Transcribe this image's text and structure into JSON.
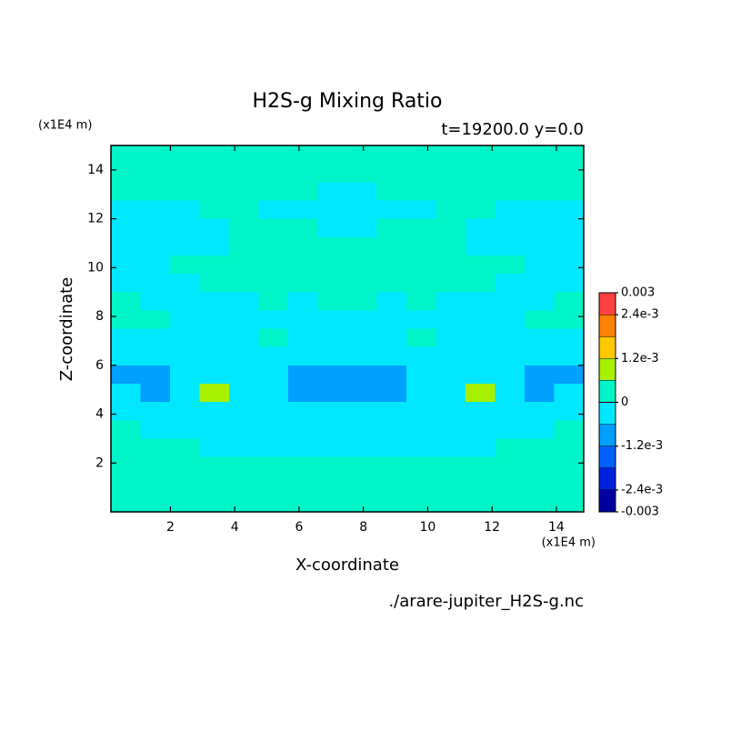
{
  "chart_data": {
    "type": "contour",
    "title": "H2S-g Mixing Ratio",
    "subtitle": "t=19200.0 y=0.0",
    "xlabel": "X-coordinate",
    "ylabel": "Z-coordinate",
    "x_unit": "(x1E4 m)",
    "y_unit": "(x1E4 m)",
    "footer": "./arare-jupiter_H2S-g.nc",
    "xlim": [
      0.15,
      14.85
    ],
    "ylim": [
      0,
      15
    ],
    "xticks": [
      2,
      4,
      6,
      8,
      10,
      12,
      14
    ],
    "yticks": [
      2,
      4,
      6,
      8,
      10,
      12,
      14
    ],
    "levels": [
      -0.003,
      -0.0024,
      -0.0018,
      -0.0012,
      -0.0006,
      0,
      0.0006,
      0.0012,
      0.0018,
      0.0024,
      0.003
    ],
    "colors": [
      "#0000a0",
      "#0020e0",
      "#0060ff",
      "#00a0ff",
      "#00e8ff",
      "#00f5c8",
      "#a6f000",
      "#ffc800",
      "#ff8200",
      "#ff4040"
    ],
    "colorbar_ticks": [
      0.003,
      {
        "value": 0.0024,
        "label": "2.4e-3"
      },
      {
        "value": 0.0012,
        "label": "1.2e-3"
      },
      0,
      {
        "value": -0.0012,
        "label": "-1.2e-3"
      },
      {
        "value": -0.0024,
        "label": "-2.4e-3"
      },
      -0.003
    ],
    "z": [
      [
        0.0003,
        0.0003,
        0.0003,
        0.0003,
        0.0003,
        0.0003,
        0.0003,
        0.0003,
        0.0003,
        0.0003,
        0.0003,
        0.0003,
        0.0003,
        0.0003,
        0.0003,
        0.0003
      ],
      [
        0.0003,
        0.0003,
        0.0003,
        0.0003,
        0.0003,
        0.0003,
        0.0003,
        0.0003,
        0.0003,
        0.0003,
        0.0003,
        0.0003,
        0.0003,
        0.0003,
        0.0003,
        0.0003
      ],
      [
        0.0003,
        0.0003,
        0.0003,
        0.0003,
        0.0003,
        0.0003,
        0.0003,
        -0.0003,
        -0.0003,
        0.0003,
        0.0003,
        0.0003,
        0.0003,
        0.0003,
        0.0003,
        0.0003
      ],
      [
        -0.0003,
        -0.0003,
        -0.0003,
        0.0003,
        0.0003,
        -0.0003,
        -0.0003,
        -0.0003,
        -0.0003,
        -0.0003,
        -0.0003,
        0.0003,
        0.0003,
        -0.0003,
        -0.0003,
        -0.0003
      ],
      [
        -0.0003,
        -0.0003,
        -0.0003,
        -0.0003,
        0.0003,
        0.0003,
        0.0003,
        -0.0003,
        -0.0003,
        0.0003,
        0.0003,
        0.0003,
        -0.0003,
        -0.0003,
        -0.0003,
        -0.0003
      ],
      [
        -0.0003,
        -0.0003,
        -0.0003,
        -0.0003,
        0.0003,
        0.0003,
        0.0003,
        0.0003,
        0.0003,
        0.0003,
        0.0003,
        0.0003,
        -0.0003,
        -0.0003,
        -0.0003,
        -0.0003
      ],
      [
        -0.0003,
        -0.0003,
        0.0003,
        0.0003,
        0.0003,
        0.0003,
        0.0003,
        0.0003,
        0.0003,
        0.0003,
        0.0003,
        0.0003,
        0.0003,
        0.0003,
        -0.0003,
        -0.0003
      ],
      [
        -0.0003,
        -0.0003,
        -0.0003,
        0.0003,
        0.0003,
        0.0003,
        0.0003,
        0.0003,
        0.0003,
        0.0003,
        0.0003,
        0.0003,
        0.0003,
        -0.0003,
        -0.0003,
        -0.0003
      ],
      [
        0.0003,
        -0.0003,
        -0.0003,
        -0.0003,
        -0.0003,
        0.0003,
        -0.0003,
        0.0003,
        0.0003,
        -0.0003,
        0.0003,
        -0.0003,
        -0.0003,
        -0.0003,
        -0.0003,
        0.0003
      ],
      [
        0.0003,
        0.0003,
        -0.0003,
        -0.0003,
        -0.0003,
        -0.0003,
        -0.0003,
        -0.0003,
        -0.0003,
        -0.0003,
        -0.0003,
        -0.0003,
        -0.0003,
        -0.0003,
        0.0003,
        0.0003
      ],
      [
        -0.0003,
        -0.0003,
        -0.0003,
        -0.0003,
        -0.0003,
        0.0003,
        -0.0003,
        -0.0003,
        -0.0003,
        -0.0003,
        0.0003,
        -0.0003,
        -0.0003,
        -0.0003,
        -0.0003,
        -0.0003
      ],
      [
        -0.0003,
        -0.0003,
        -0.0003,
        -0.0003,
        -0.0003,
        -0.0003,
        -0.0003,
        -0.0003,
        -0.0003,
        -0.0003,
        -0.0003,
        -0.0003,
        -0.0003,
        -0.0003,
        -0.0003,
        -0.0003
      ],
      [
        -0.0009,
        -0.0009,
        -0.0003,
        -0.0003,
        -0.0003,
        -0.0003,
        -0.0009,
        -0.0009,
        -0.0009,
        -0.0009,
        -0.0003,
        -0.0003,
        -0.0003,
        -0.0003,
        -0.0009,
        -0.0009
      ],
      [
        -0.0003,
        -0.0009,
        -0.0003,
        0.0009,
        -0.0003,
        -0.0003,
        -0.0009,
        -0.0009,
        -0.0009,
        -0.0009,
        -0.0003,
        -0.0003,
        0.0009,
        -0.0003,
        -0.0009,
        -0.0003
      ],
      [
        -0.0003,
        -0.0003,
        -0.0003,
        -0.0003,
        -0.0003,
        -0.0003,
        -0.0003,
        -0.0003,
        -0.0003,
        -0.0003,
        -0.0003,
        -0.0003,
        -0.0003,
        -0.0003,
        -0.0003,
        -0.0003
      ],
      [
        0.0003,
        -0.0003,
        -0.0003,
        -0.0003,
        -0.0003,
        -0.0003,
        -0.0003,
        -0.0003,
        -0.0003,
        -0.0003,
        -0.0003,
        -0.0003,
        -0.0003,
        -0.0003,
        -0.0003,
        0.0003
      ],
      [
        0.0003,
        0.0003,
        0.0003,
        -0.0003,
        -0.0003,
        -0.0003,
        -0.0003,
        -0.0003,
        -0.0003,
        -0.0003,
        -0.0003,
        -0.0003,
        -0.0003,
        0.0003,
        0.0003,
        0.0003
      ],
      [
        0.0003,
        0.0003,
        0.0003,
        0.0003,
        0.0003,
        0.0003,
        0.0003,
        0.0003,
        0.0003,
        0.0003,
        0.0003,
        0.0003,
        0.0003,
        0.0003,
        0.0003,
        0.0003
      ],
      [
        0.0003,
        0.0003,
        0.0003,
        0.0003,
        0.0003,
        0.0003,
        0.0003,
        0.0003,
        0.0003,
        0.0003,
        0.0003,
        0.0003,
        0.0003,
        0.0003,
        0.0003,
        0.0003
      ],
      [
        0.0003,
        0.0003,
        0.0003,
        0.0003,
        0.0003,
        0.0003,
        0.0003,
        0.0003,
        0.0003,
        0.0003,
        0.0003,
        0.0003,
        0.0003,
        0.0003,
        0.0003,
        0.0003
      ]
    ]
  }
}
